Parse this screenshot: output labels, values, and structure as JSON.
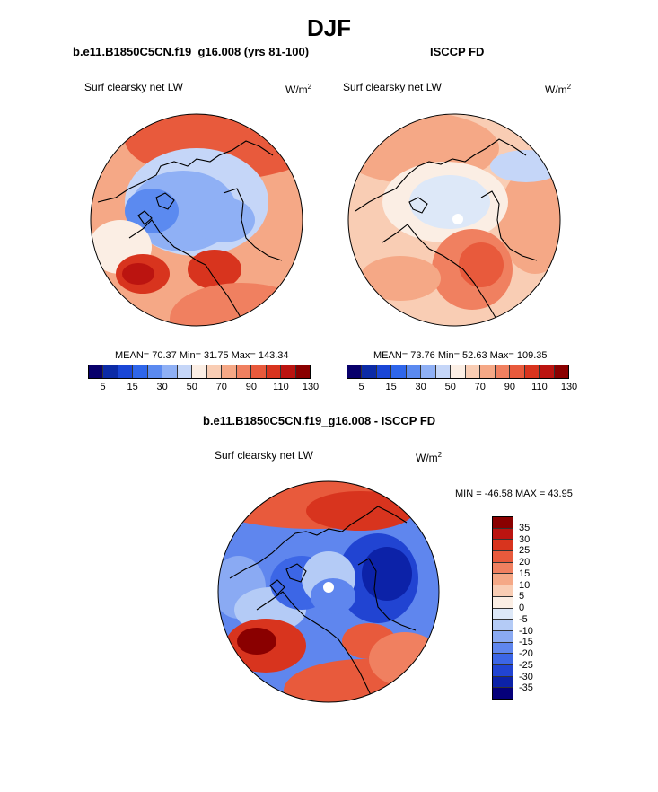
{
  "title": "DJF",
  "panels": {
    "model": {
      "case_title": "b.e11.B1850C5CN.f19_g16.008 (yrs 81-100)",
      "variable": "Surf clearsky net LW",
      "units_base": "W/m",
      "units_exp": "2",
      "stats": "MEAN=  70.37  Min=  31.75  Max=  143.34"
    },
    "obs": {
      "case_title": "ISCCP FD",
      "variable": "Surf clearsky net LW",
      "units_base": "W/m",
      "units_exp": "2",
      "stats": "MEAN=  73.76  Min=  52.63  Max=  109.35"
    },
    "diff": {
      "case_title": "b.e11.B1850C5CN.f19_g16.008 - ISCCP FD",
      "variable": "Surf clearsky net LW",
      "units_base": "W/m",
      "units_exp": "2",
      "stats": "MIN = -46.58 MAX =  43.95"
    }
  },
  "colorbar_main": {
    "colors": [
      "#08006b",
      "#0c2ba6",
      "#1a46d6",
      "#2f66ea",
      "#5b8af0",
      "#8fb0f5",
      "#c5d6f8",
      "#fbeee4",
      "#f9cdb4",
      "#f5a886",
      "#f08060",
      "#e85a3c",
      "#d8341e",
      "#bb1410",
      "#8a0000"
    ],
    "labels": [
      "5",
      "15",
      "30",
      "50",
      "70",
      "90",
      "110",
      "130"
    ]
  },
  "colorbar_diff": {
    "colors": [
      "#8a0000",
      "#bb1410",
      "#d8341e",
      "#e85a3c",
      "#f08060",
      "#f5a886",
      "#f9cdb4",
      "#fbeee4",
      "#dde8f8",
      "#b4cbf6",
      "#8aaaf3",
      "#5f86ee",
      "#3c66e6",
      "#2144d2",
      "#0c22a8",
      "#05007a"
    ],
    "labels": [
      "35",
      "30",
      "25",
      "20",
      "15",
      "10",
      "5",
      "0",
      "-5",
      "-10",
      "-15",
      "-20",
      "-25",
      "-30",
      "-35"
    ]
  }
}
